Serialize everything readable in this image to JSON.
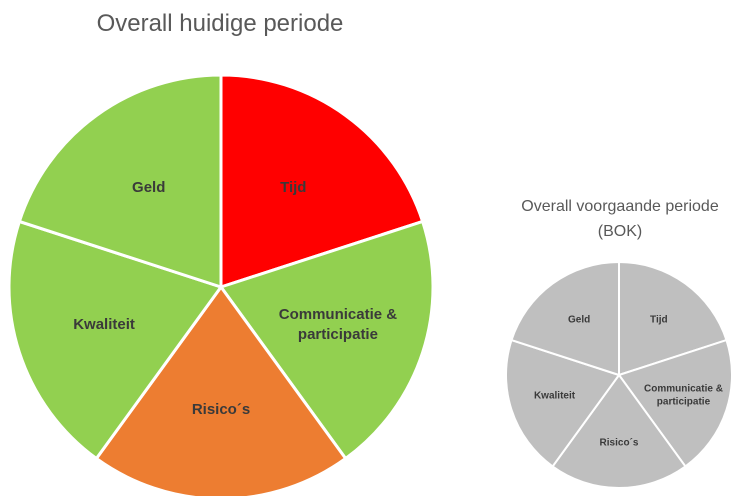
{
  "chart_data": [
    {
      "type": "pie",
      "title": "Overall huidige periode",
      "categories": [
        "Tijd",
        "Communicatie & participatie",
        "Risico´s",
        "Kwaliteit",
        "Geld"
      ],
      "values": [
        20,
        20,
        20,
        20,
        20
      ],
      "colors": [
        "#ff0000",
        "#92d050",
        "#ed7d31",
        "#92d050",
        "#92d050"
      ]
    },
    {
      "type": "pie",
      "title": "Overall voorgaande periode (BOK)",
      "categories": [
        "Tijd",
        "Communicatie & participatie",
        "Risico´s",
        "Kwaliteit",
        "Geld"
      ],
      "values": [
        20,
        20,
        20,
        20,
        20
      ],
      "colors": [
        "#bfbfbf",
        "#bfbfbf",
        "#bfbfbf",
        "#bfbfbf",
        "#bfbfbf"
      ]
    }
  ]
}
